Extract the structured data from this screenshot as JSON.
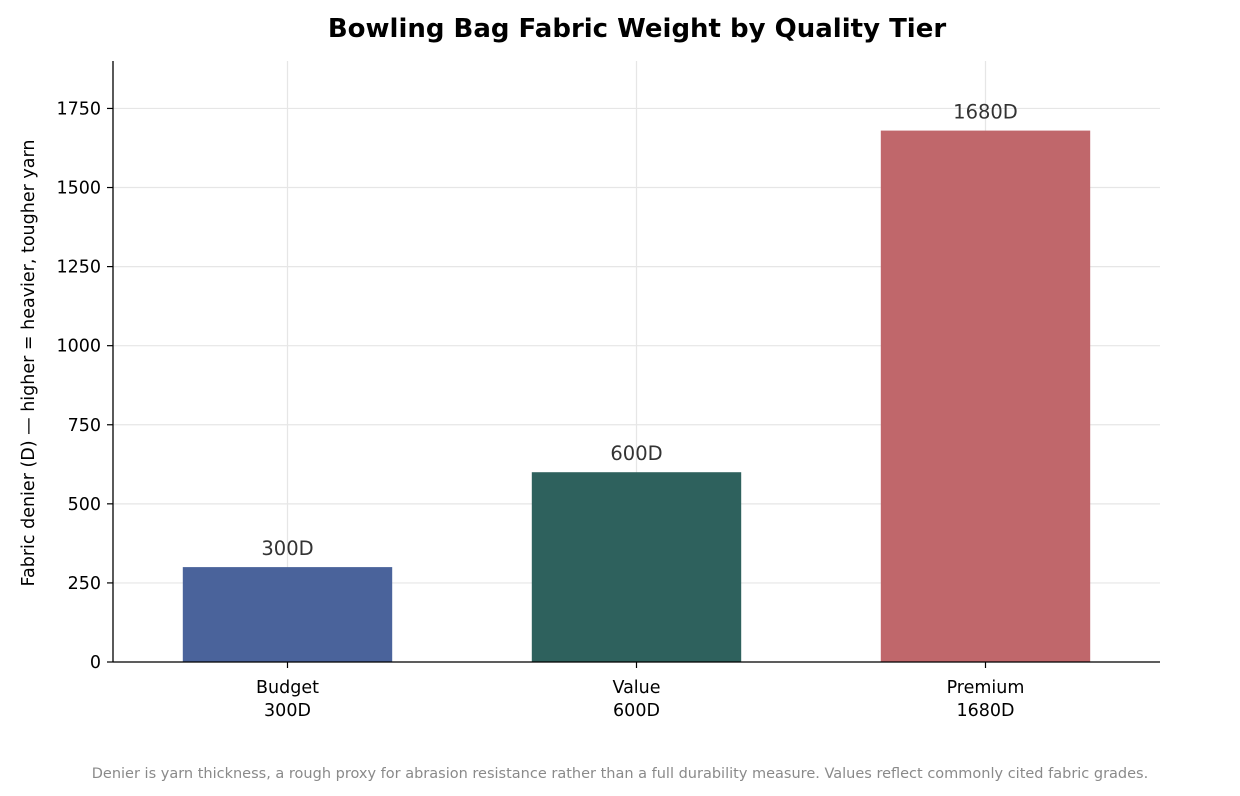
{
  "chart_data": {
    "type": "bar",
    "title": "Bowling Bag Fabric Weight by Quality Tier",
    "ylabel": "Fabric denier (D) — higher = heavier, tougher yarn",
    "xlabel": "",
    "categories": [
      {
        "name": "Budget",
        "sub": "300D"
      },
      {
        "name": "Value",
        "sub": "600D"
      },
      {
        "name": "Premium",
        "sub": "1680D"
      }
    ],
    "values": [
      300,
      600,
      1680
    ],
    "data_labels": [
      "300D",
      "600D",
      "1680D"
    ],
    "colors": [
      "#4a639b",
      "#2e615d",
      "#c0676b"
    ],
    "ylim": [
      0,
      1900
    ],
    "yticks": [
      0,
      250,
      500,
      750,
      1000,
      1250,
      1500,
      1750
    ],
    "grid": true,
    "footnote": "Denier is yarn thickness, a rough proxy for abrasion resistance rather than a full durability measure. Values reflect commonly cited fabric grades."
  }
}
